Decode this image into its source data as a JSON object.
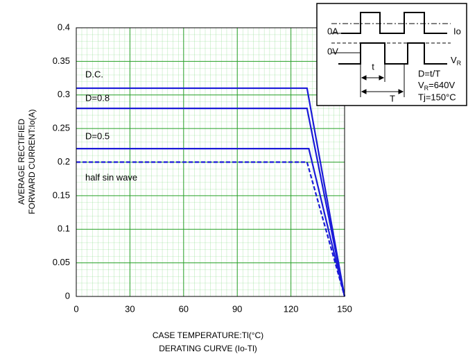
{
  "chart_data": {
    "type": "line",
    "subtitle": "DERATING  CURVE (Io-Tl)",
    "xlabel": "CASE TEMPERATURE:Tl(°C)",
    "ylabel": [
      "AVERAGE RECTIFIED",
      "FORWARD CURRENT:Io(A)"
    ],
    "xlim": [
      0,
      150
    ],
    "ylim": [
      0,
      0.4
    ],
    "xticks": [
      0,
      30,
      60,
      90,
      120,
      150
    ],
    "yticks": [
      0,
      0.05,
      0.1,
      0.15,
      0.2,
      0.25,
      0.3,
      0.35,
      0.4
    ],
    "grid": true,
    "series": [
      {
        "name": "D.C.",
        "color": "#1a1ad8",
        "dashed": false,
        "x": [
          0,
          129,
          150
        ],
        "values": [
          0.31,
          0.31,
          0
        ]
      },
      {
        "name": "D=0.8",
        "color": "#1a1ad8",
        "dashed": false,
        "x": [
          0,
          129,
          150
        ],
        "values": [
          0.28,
          0.28,
          0
        ]
      },
      {
        "name": "D=0.5",
        "color": "#1a1ad8",
        "dashed": false,
        "x": [
          0,
          130,
          150
        ],
        "values": [
          0.22,
          0.22,
          0
        ]
      },
      {
        "name": "half sin wave",
        "color": "#1a1ad8",
        "dashed": true,
        "x": [
          0,
          129,
          150
        ],
        "values": [
          0.2,
          0.2,
          0
        ]
      }
    ]
  },
  "inset": {
    "zero_a": "0A",
    "io": "Io",
    "zero_v": "0V",
    "vr": [
      "V",
      "R"
    ],
    "t": "t",
    "big_t": "T",
    "duty": "D=t/T",
    "vr_value": [
      "V",
      "R",
      "=640V"
    ],
    "tj": "Tj=150°C"
  }
}
